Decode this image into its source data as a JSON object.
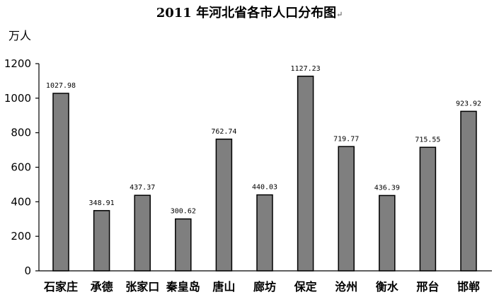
{
  "chart_data": {
    "type": "bar",
    "title": "2011 年河北省各市人口分布图",
    "title_mark": "↵",
    "ylabel": "万人",
    "xlabel": "",
    "ylim": [
      0,
      1200
    ],
    "yticks": [
      0,
      200,
      400,
      600,
      800,
      1000,
      1200
    ],
    "categories": [
      "石家庄",
      "承德",
      "张家口",
      "秦皇岛",
      "唐山",
      "廊坊",
      "保定",
      "沧州",
      "衡水",
      "邢台",
      "邯郸"
    ],
    "values": [
      1027.98,
      348.91,
      437.37,
      300.62,
      762.74,
      440.03,
      1127.23,
      719.77,
      436.39,
      715.55,
      923.92
    ],
    "value_labels": [
      "1027.98",
      "348.91",
      "437.37",
      "300.62",
      "762.74",
      "440.03",
      "1127.23",
      "719.77",
      "436.39",
      "715.55",
      "923.92"
    ],
    "bar_color": "#7f7f7f",
    "bar_stroke": "#000000",
    "grid": false,
    "legend": "none"
  }
}
